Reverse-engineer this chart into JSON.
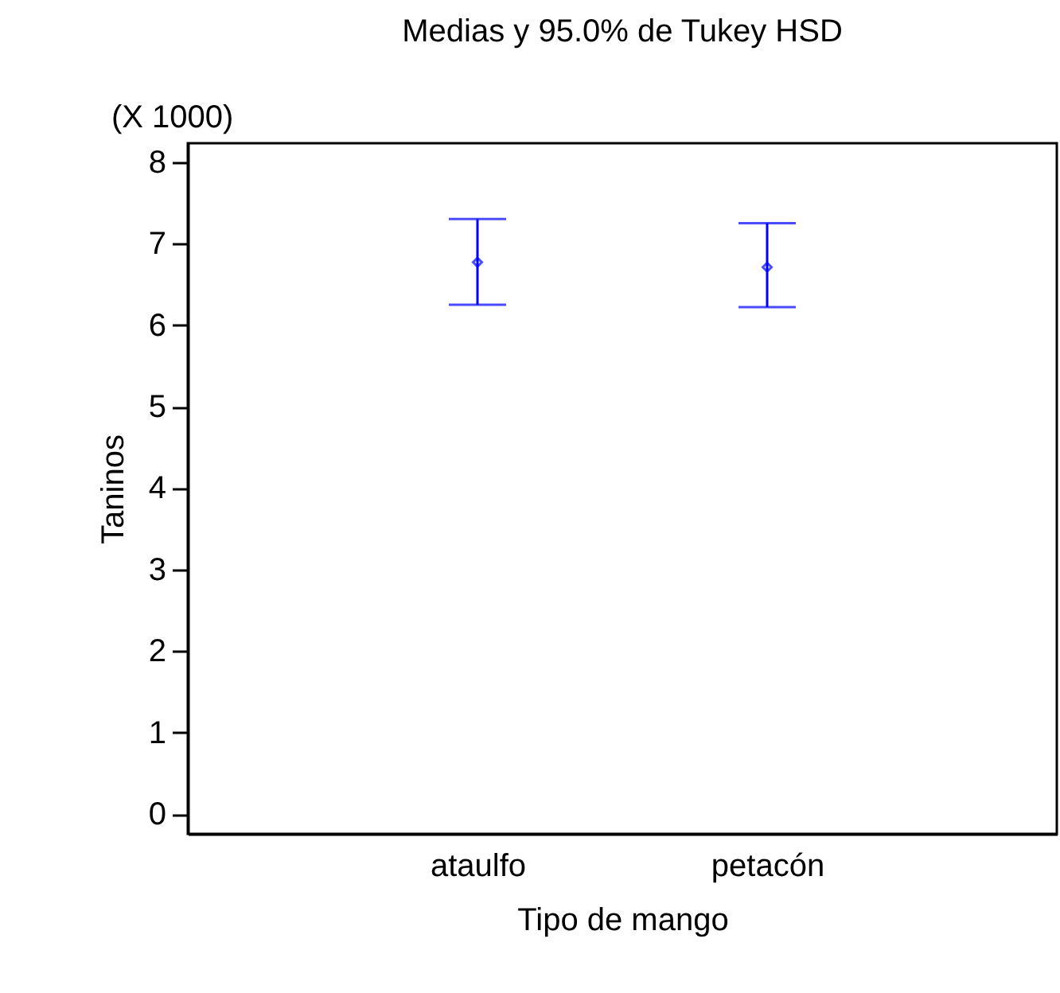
{
  "chart_data": {
    "type": "scatter",
    "title": "Medias y 95.0% de Tukey HSD",
    "xlabel": "Tipo de mango",
    "ylabel": "Taninos",
    "annotations": [
      "(X 1000)"
    ],
    "categories": [
      "ataulfo",
      "petacón"
    ],
    "series": [
      {
        "color": "#0000ff",
        "values": [
          6.77,
          6.71
        ],
        "errors": [
          [
            6.25,
            7.3
          ],
          [
            6.22,
            7.25
          ]
        ]
      }
    ],
    "marker": "diamond",
    "ylim": [
      -0.24,
      8.23
    ],
    "yticks": [
      0,
      1,
      2,
      3,
      4,
      5,
      6,
      7,
      8
    ],
    "grid": false
  }
}
